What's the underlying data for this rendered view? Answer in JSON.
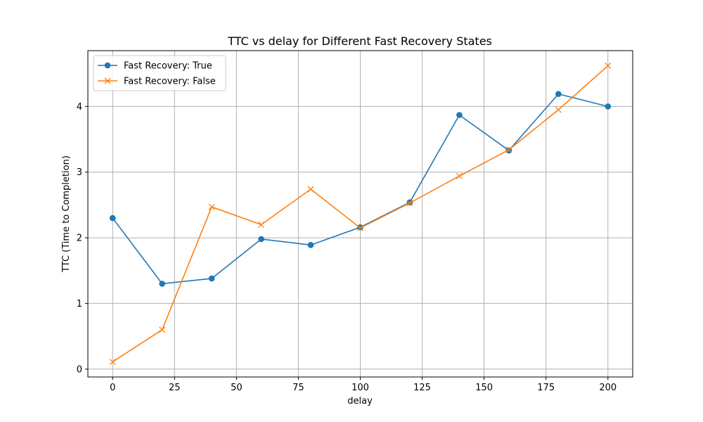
{
  "chart_data": {
    "type": "line",
    "title": "TTC vs delay for Different Fast Recovery States",
    "xlabel": "delay",
    "ylabel": "TTC (Time to Completion)",
    "xlim": [
      -10,
      210
    ],
    "ylim": [
      -0.12,
      4.85
    ],
    "xticks": [
      0,
      25,
      50,
      75,
      100,
      125,
      150,
      175,
      200
    ],
    "yticks": [
      0,
      1,
      2,
      3,
      4
    ],
    "grid": true,
    "legend_position": "top-left",
    "x": [
      0,
      20,
      40,
      60,
      80,
      100,
      120,
      140,
      160,
      180,
      200
    ],
    "series": [
      {
        "name": "Fast Recovery: True",
        "color": "#1f77b4",
        "marker": "circle",
        "values": [
          2.3,
          1.3,
          1.38,
          1.98,
          1.89,
          2.16,
          2.54,
          3.87,
          3.33,
          4.19,
          4.0
        ]
      },
      {
        "name": "Fast Recovery: False",
        "color": "#ff7f0e",
        "marker": "x",
        "values": [
          0.11,
          0.6,
          2.47,
          2.2,
          2.74,
          2.15,
          2.53,
          2.94,
          3.34,
          3.95,
          4.62
        ]
      }
    ]
  }
}
